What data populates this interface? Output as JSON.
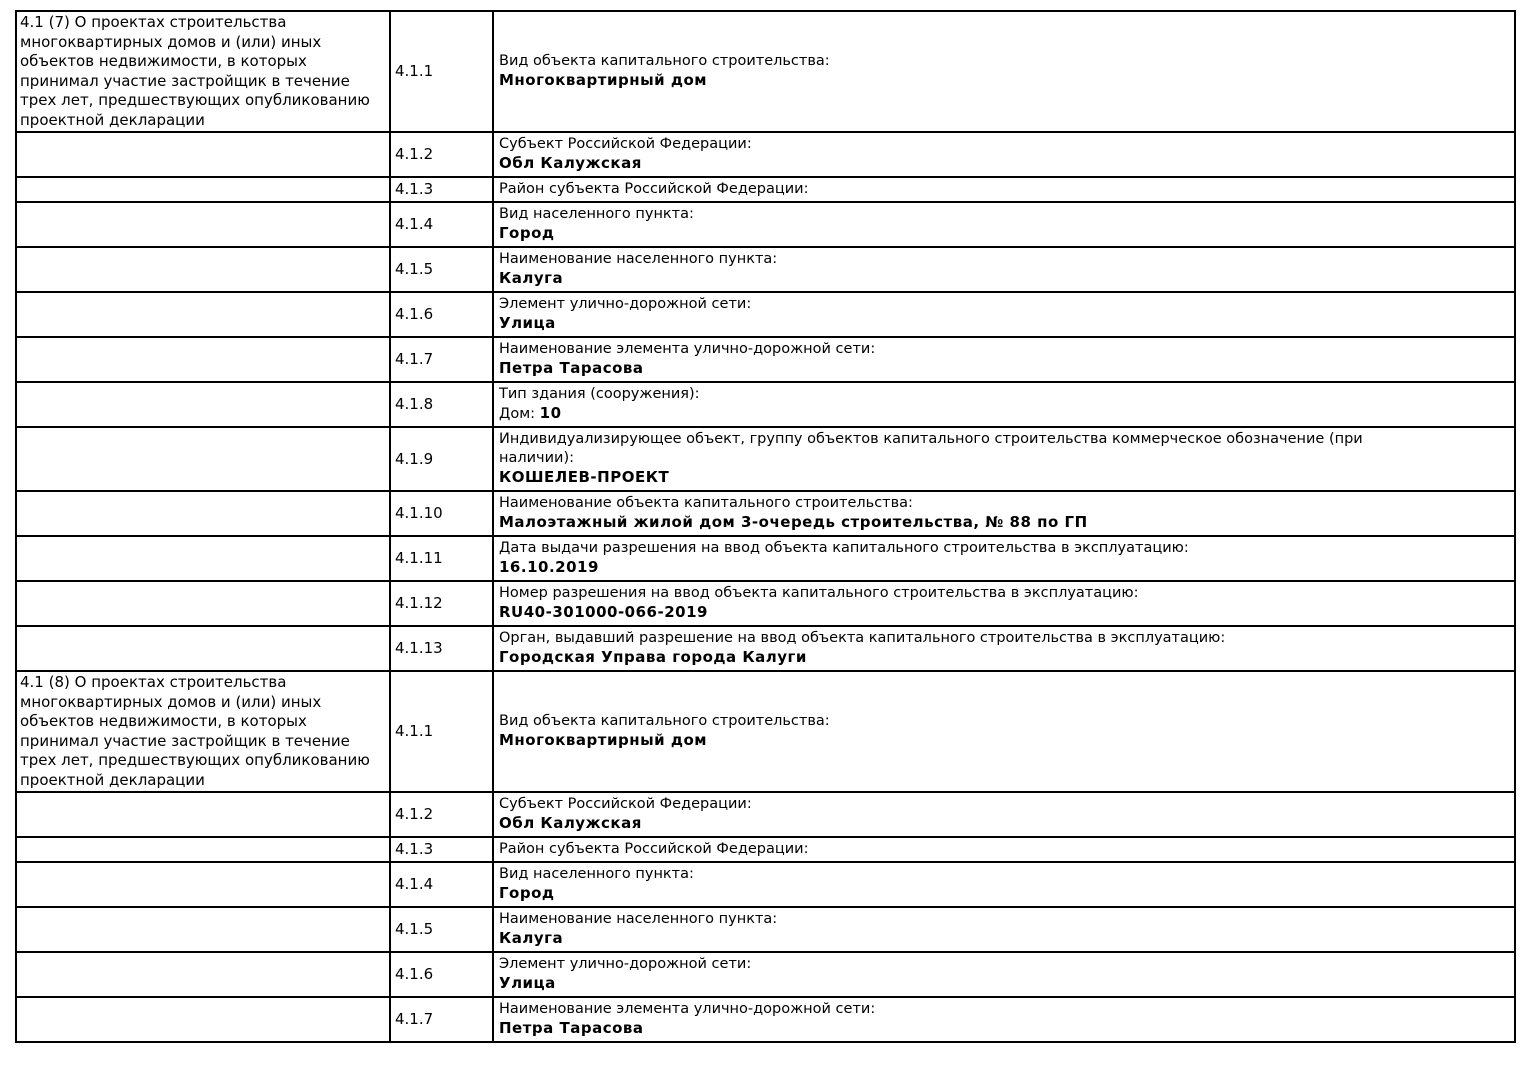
{
  "table": {
    "sections": [
      {
        "header": "4.1 (7) О проектах строительства\nмногоквартирных домов и (или) иных\nобъектов недвижимости, в которых\nпринимал участие застройщик в течение\nтрех лет, предшествующих опубликованию\nпроектной декларации",
        "rows": [
          {
            "code": "4.1.1",
            "label": "Вид объекта капитального строительства:",
            "value": "Многоквартирный дом"
          },
          {
            "code": "4.1.2",
            "label": "Субъект Российской Федерации:",
            "value": "Обл Калужская"
          },
          {
            "code": "4.1.3",
            "label": "Район субъекта Российской Федерации:",
            "value": ""
          },
          {
            "code": "4.1.4",
            "label": "Вид населенного пункта:",
            "value": "Город"
          },
          {
            "code": "4.1.5",
            "label": "Наименование населенного пункта:",
            "value": "Калуга"
          },
          {
            "code": "4.1.6",
            "label": "Элемент улично-дорожной сети:",
            "value": "Улица"
          },
          {
            "code": "4.1.7",
            "label": "Наименование элемента улично-дорожной сети:",
            "value": "Петра Тарасова"
          },
          {
            "code": "4.1.8",
            "label": "Тип здания (сооружения):",
            "value_prefix": "Дом: ",
            "value": "10"
          },
          {
            "code": "4.1.9",
            "label": "Индивидуализирующее объект, группу объектов капитального строительства коммерческое обозначение (при\nналичии):",
            "value": "КОШЕЛЕВ-ПРОЕКТ"
          },
          {
            "code": "4.1.10",
            "label": "Наименование объекта капитального строительства:",
            "value": "Малоэтажный жилой дом 3-очередь строительства, № 88 по ГП"
          },
          {
            "code": "4.1.11",
            "label": "Дата выдачи разрешения на ввод объекта капитального строительства в эксплуатацию:",
            "value": "16.10.2019"
          },
          {
            "code": "4.1.12",
            "label": "Номер разрешения на ввод объекта капитального строительства в эксплуатацию:",
            "value": "RU40-301000-066-2019"
          },
          {
            "code": "4.1.13",
            "label": "Орган, выдавший разрешение на ввод объекта капитального строительства в эксплуатацию:",
            "value": "Городская Управа города Калуги"
          }
        ]
      },
      {
        "header": "4.1 (8) О проектах строительства\nмногоквартирных домов и (или) иных\nобъектов недвижимости, в которых\nпринимал участие застройщик в течение\nтрех лет, предшествующих опубликованию\nпроектной декларации",
        "rows": [
          {
            "code": "4.1.1",
            "label": "Вид объекта капитального строительства:",
            "value": "Многоквартирный дом"
          },
          {
            "code": "4.1.2",
            "label": "Субъект Российской Федерации:",
            "value": "Обл Калужская"
          },
          {
            "code": "4.1.3",
            "label": "Район субъекта Российской Федерации:",
            "value": ""
          },
          {
            "code": "4.1.4",
            "label": "Вид населенного пункта:",
            "value": "Город"
          },
          {
            "code": "4.1.5",
            "label": "Наименование населенного пункта:",
            "value": "Калуга"
          },
          {
            "code": "4.1.6",
            "label": "Элемент улично-дорожной сети:",
            "value": "Улица"
          },
          {
            "code": "4.1.7",
            "label": "Наименование элемента улично-дорожной сети:",
            "value": "Петра Тарасова"
          }
        ]
      }
    ],
    "colors": {
      "border": "#000000",
      "background": "#ffffff",
      "text": "#000000"
    }
  }
}
